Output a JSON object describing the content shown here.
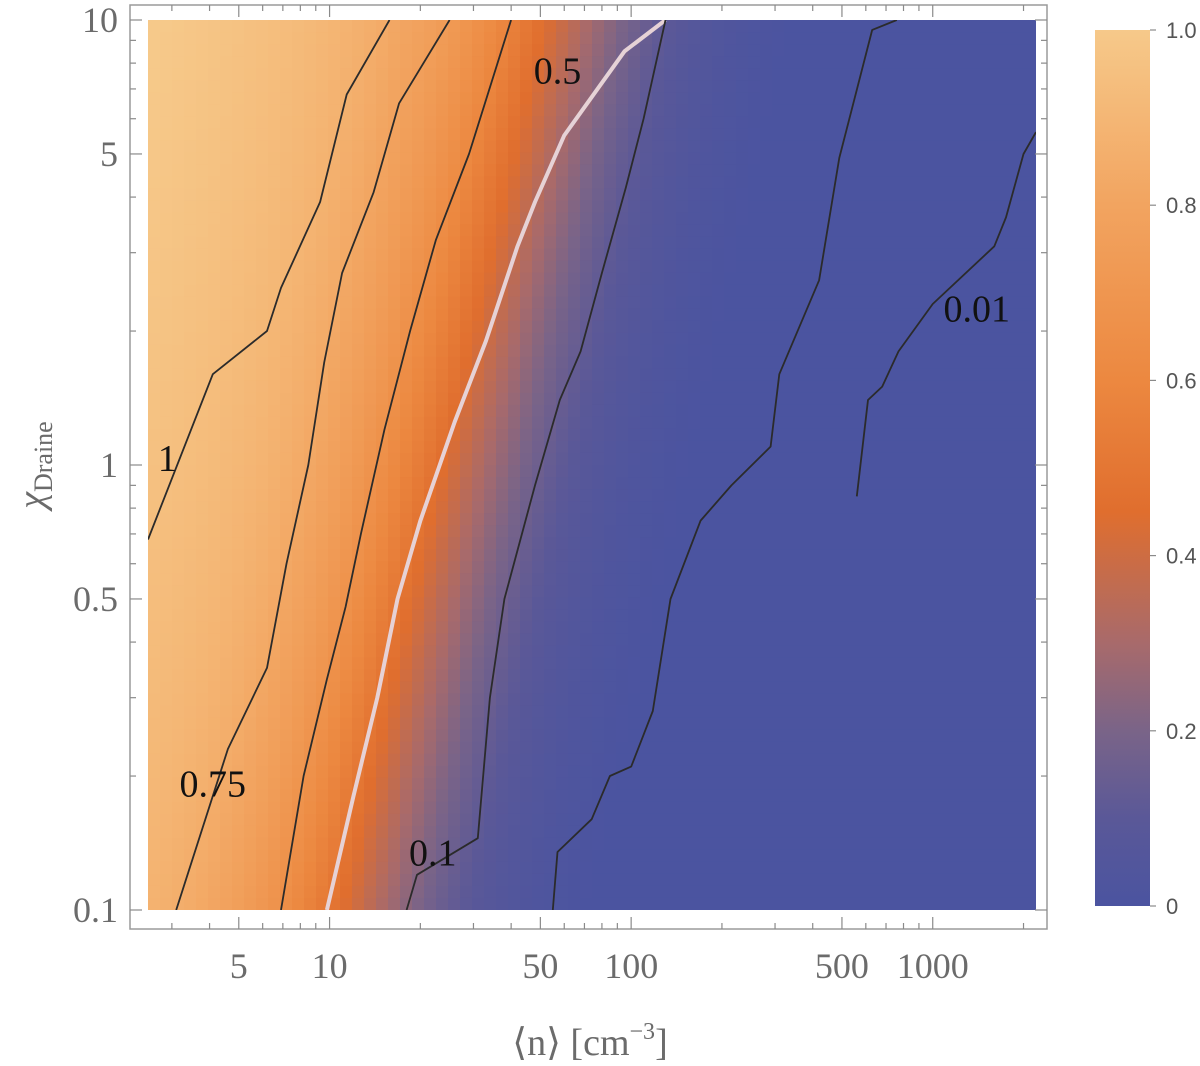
{
  "chart_data": {
    "type": "heatmap",
    "title": "",
    "xlabel_parts": [
      "⟨n⟩ [cm",
      "−3",
      "]"
    ],
    "ylabel_parts": [
      "χ",
      "Draine"
    ],
    "xscale": "log",
    "yscale": "log",
    "xlim": [
      2.5,
      2200
    ],
    "ylim": [
      0.1,
      10
    ],
    "x_ticks": [
      {
        "value": 5,
        "label": "5"
      },
      {
        "value": 10,
        "label": "10"
      },
      {
        "value": 50,
        "label": "50"
      },
      {
        "value": 100,
        "label": "100"
      },
      {
        "value": 500,
        "label": "500"
      },
      {
        "value": 1000,
        "label": "1000"
      }
    ],
    "y_ticks": [
      {
        "value": 0.1,
        "label": "0.1"
      },
      {
        "value": 0.5,
        "label": "0.5"
      },
      {
        "value": 1,
        "label": "1"
      },
      {
        "value": 5,
        "label": "5"
      },
      {
        "value": 10,
        "label": "10"
      }
    ],
    "colorbar": {
      "min": 0,
      "max": 1,
      "ticks": [
        "0",
        "0.2",
        "0.4",
        "0.6",
        "0.8",
        "1.0"
      ],
      "colors": [
        {
          "stop": 0,
          "color": "#4b54a0"
        },
        {
          "stop": 0.1,
          "color": "#5a5898"
        },
        {
          "stop": 0.2,
          "color": "#7a6488"
        },
        {
          "stop": 0.3,
          "color": "#a86a6b"
        },
        {
          "stop": 0.45,
          "color": "#e06e2e"
        },
        {
          "stop": 0.6,
          "color": "#ec8840"
        },
        {
          "stop": 0.8,
          "color": "#f2a460"
        },
        {
          "stop": 1,
          "color": "#f6c98a"
        }
      ]
    },
    "contours": [
      {
        "name": "contour-1",
        "label": "1",
        "color": "#2b2b2b",
        "points": [
          [
            2.5,
            0.68
          ],
          [
            4.1,
            1.6
          ],
          [
            6.2,
            2.0
          ],
          [
            6.9,
            2.5
          ],
          [
            9.3,
            3.9
          ],
          [
            11.4,
            6.8
          ],
          [
            15.8,
            10
          ]
        ]
      },
      {
        "name": "contour-0.75",
        "label": "0.75",
        "color": "#2b2b2b",
        "points": [
          [
            3.1,
            0.1
          ],
          [
            4.6,
            0.23
          ],
          [
            6.2,
            0.35
          ],
          [
            7.2,
            0.6
          ],
          [
            8.5,
            1.0
          ],
          [
            9.6,
            1.7
          ],
          [
            11,
            2.7
          ],
          [
            14,
            4.1
          ],
          [
            17,
            6.5
          ],
          [
            25,
            10
          ]
        ]
      },
      {
        "name": "contour-a",
        "label": "",
        "color": "#2b2b2b",
        "points": [
          [
            6.9,
            0.1
          ],
          [
            8.2,
            0.2
          ],
          [
            9.8,
            0.33
          ],
          [
            11.3,
            0.48
          ],
          [
            12.7,
            0.7
          ],
          [
            15.2,
            1.2
          ],
          [
            18.5,
            2.0
          ],
          [
            22.5,
            3.2
          ],
          [
            29,
            5.0
          ],
          [
            40,
            10
          ]
        ]
      },
      {
        "name": "contour-0.5",
        "label": "0.5",
        "color": "#e6d2d6",
        "points": [
          [
            9.8,
            0.1
          ],
          [
            12,
            0.18
          ],
          [
            14.4,
            0.3
          ],
          [
            16.8,
            0.5
          ],
          [
            20,
            0.75
          ],
          [
            26,
            1.25
          ],
          [
            33,
            1.9
          ],
          [
            42,
            3.1
          ],
          [
            48,
            3.9
          ],
          [
            60,
            5.5
          ],
          [
            95,
            8.5
          ],
          [
            130,
            10
          ]
        ]
      },
      {
        "name": "contour-b",
        "label": "",
        "color": "#2b2b2b",
        "points": [
          [
            18,
            0.1
          ],
          [
            19.5,
            0.12
          ],
          [
            31,
            0.145
          ],
          [
            34,
            0.3
          ],
          [
            38,
            0.5
          ],
          [
            48,
            0.9
          ],
          [
            58,
            1.4
          ],
          [
            68,
            1.8
          ],
          [
            80,
            2.7
          ],
          [
            96,
            4.2
          ],
          [
            110,
            6.0
          ],
          [
            130,
            10
          ]
        ]
      },
      {
        "name": "contour-0.1",
        "label": "0.1",
        "color": "#2b2b2b",
        "points": [
          [
            55,
            0.1
          ],
          [
            57,
            0.135
          ],
          [
            74,
            0.16
          ],
          [
            85,
            0.2
          ],
          [
            100,
            0.21
          ],
          [
            118,
            0.28
          ],
          [
            135,
            0.5
          ],
          [
            170,
            0.75
          ],
          [
            215,
            0.9
          ],
          [
            290,
            1.1
          ],
          [
            310,
            1.6
          ],
          [
            420,
            2.6
          ],
          [
            490,
            4.9
          ],
          [
            630,
            9.5
          ],
          [
            760,
            10
          ]
        ]
      },
      {
        "name": "contour-0.01",
        "label": "0.01",
        "color": "#2b2b2b",
        "points": [
          [
            560,
            0.85
          ],
          [
            610,
            1.4
          ],
          [
            680,
            1.5
          ],
          [
            770,
            1.8
          ],
          [
            1000,
            2.3
          ],
          [
            1600,
            3.1
          ],
          [
            1750,
            3.6
          ],
          [
            2000,
            5.0
          ],
          [
            2200,
            5.6
          ]
        ]
      }
    ],
    "contour_labels": [
      {
        "text": "1",
        "x": 2.9,
        "y": 0.97
      },
      {
        "text": "0.75",
        "x": 4.1,
        "y": 0.18
      },
      {
        "text": "0.5",
        "x": 57,
        "y": 7.2
      },
      {
        "text": "0.1",
        "x": 22,
        "y": 0.126
      },
      {
        "text": "0.01",
        "x": 1400,
        "y": 2.1
      }
    ],
    "gradient_description": "value near 1.0 at low density and high field (top-left), falling to ~0 at high density (right)"
  }
}
